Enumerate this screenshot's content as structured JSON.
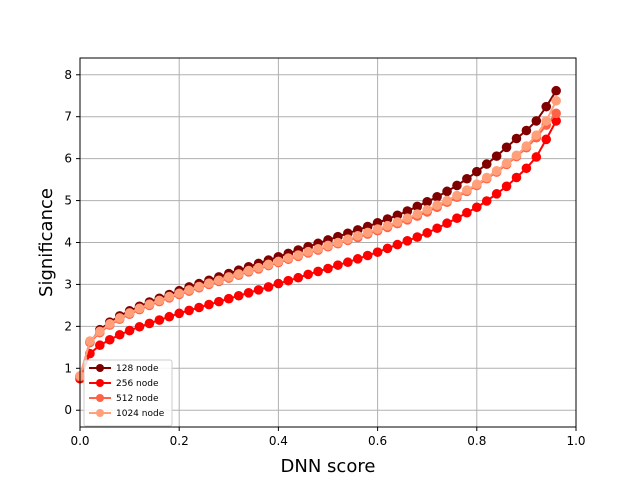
{
  "chart_data": {
    "type": "line",
    "xlabel": "DNN score",
    "ylabel": "Significance",
    "xlim": [
      0.0,
      1.0
    ],
    "ylim": [
      -0.4,
      8.4
    ],
    "xticks": [
      0.0,
      0.2,
      0.4,
      0.6,
      0.8,
      1.0
    ],
    "xtick_labels": [
      "0.0",
      "0.2",
      "0.4",
      "0.6",
      "0.8",
      "1.0"
    ],
    "yticks": [
      0,
      1,
      2,
      3,
      4,
      5,
      6,
      7,
      8
    ],
    "ytick_labels": [
      "0",
      "1",
      "2",
      "3",
      "4",
      "5",
      "6",
      "7",
      "8"
    ],
    "grid": true,
    "legend_position": "lower-left",
    "x": [
      0.0,
      0.02,
      0.04,
      0.06,
      0.08,
      0.1,
      0.12,
      0.14,
      0.16,
      0.18,
      0.2,
      0.22,
      0.24,
      0.26,
      0.28,
      0.3,
      0.32,
      0.34,
      0.36,
      0.38,
      0.4,
      0.42,
      0.44,
      0.46,
      0.48,
      0.5,
      0.52,
      0.54,
      0.56,
      0.58,
      0.6,
      0.62,
      0.64,
      0.66,
      0.68,
      0.7,
      0.72,
      0.74,
      0.76,
      0.78,
      0.8,
      0.82,
      0.84,
      0.86,
      0.88,
      0.9,
      0.92,
      0.94,
      0.96
    ],
    "series": [
      {
        "name": "128 node",
        "color": "#800000",
        "values": [
          0.8,
          1.62,
          1.92,
          2.1,
          2.25,
          2.37,
          2.48,
          2.58,
          2.67,
          2.76,
          2.85,
          2.94,
          3.02,
          3.1,
          3.18,
          3.26,
          3.34,
          3.42,
          3.5,
          3.58,
          3.66,
          3.74,
          3.82,
          3.9,
          3.98,
          4.06,
          4.14,
          4.22,
          4.3,
          4.38,
          4.47,
          4.56,
          4.65,
          4.75,
          4.86,
          4.97,
          5.09,
          5.22,
          5.36,
          5.52,
          5.69,
          5.87,
          6.06,
          6.27,
          6.48,
          6.67,
          6.9,
          7.24,
          7.62
        ]
      },
      {
        "name": "256 node",
        "color": "#ff0000",
        "values": [
          0.75,
          1.35,
          1.55,
          1.68,
          1.8,
          1.9,
          1.99,
          2.07,
          2.15,
          2.23,
          2.31,
          2.38,
          2.45,
          2.52,
          2.59,
          2.66,
          2.73,
          2.8,
          2.87,
          2.94,
          3.02,
          3.09,
          3.16,
          3.24,
          3.31,
          3.38,
          3.46,
          3.53,
          3.61,
          3.69,
          3.77,
          3.86,
          3.95,
          4.04,
          4.13,
          4.23,
          4.34,
          4.46,
          4.58,
          4.71,
          4.84,
          4.99,
          5.16,
          5.34,
          5.55,
          5.77,
          6.04,
          6.46,
          6.9
        ]
      },
      {
        "name": "512 node",
        "color": "#ff6347",
        "values": [
          0.8,
          1.62,
          1.85,
          2.03,
          2.17,
          2.29,
          2.4,
          2.5,
          2.59,
          2.68,
          2.76,
          2.84,
          2.92,
          3.0,
          3.07,
          3.15,
          3.22,
          3.3,
          3.37,
          3.45,
          3.52,
          3.6,
          3.67,
          3.75,
          3.82,
          3.9,
          3.97,
          4.05,
          4.12,
          4.2,
          4.28,
          4.36,
          4.45,
          4.54,
          4.63,
          4.73,
          4.84,
          4.96,
          5.08,
          5.22,
          5.36,
          5.52,
          5.68,
          5.86,
          6.05,
          6.26,
          6.5,
          6.8,
          7.08
        ]
      },
      {
        "name": "1024 node",
        "color": "#ffa07a",
        "values": [
          0.82,
          1.65,
          1.88,
          2.06,
          2.2,
          2.32,
          2.43,
          2.53,
          2.62,
          2.71,
          2.79,
          2.87,
          2.95,
          3.03,
          3.1,
          3.18,
          3.25,
          3.33,
          3.4,
          3.48,
          3.55,
          3.63,
          3.7,
          3.78,
          3.85,
          3.93,
          4.0,
          4.08,
          4.16,
          4.24,
          4.32,
          4.4,
          4.49,
          4.58,
          4.68,
          4.78,
          4.89,
          5.0,
          5.12,
          5.25,
          5.39,
          5.55,
          5.71,
          5.89,
          6.08,
          6.3,
          6.56,
          6.9,
          7.38
        ]
      }
    ]
  }
}
